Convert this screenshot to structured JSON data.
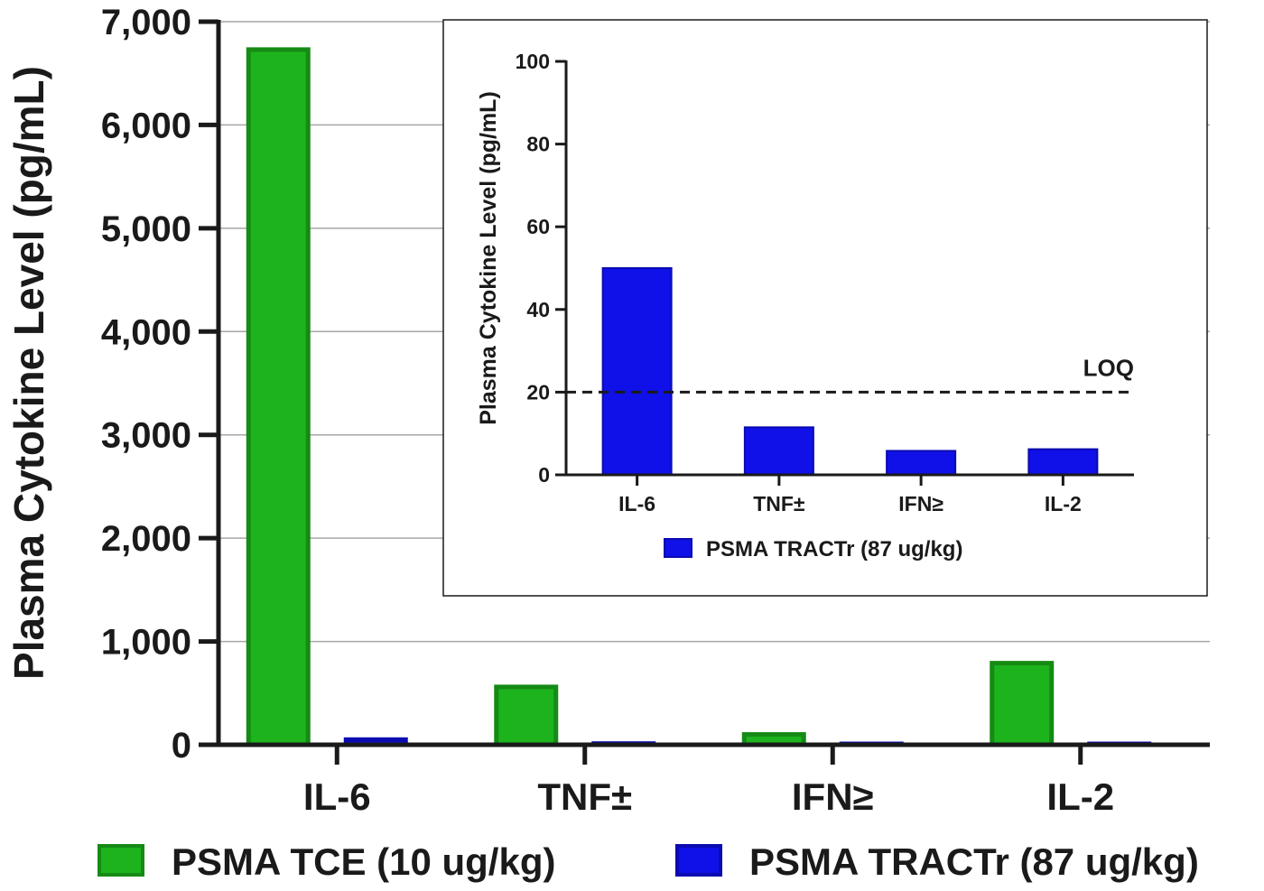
{
  "colors": {
    "tce_fill": "#1db31d",
    "tce_stroke": "#158a15",
    "tractr_fill": "#1010e8",
    "tractr_stroke": "#0b0bb0",
    "grid": "#a6a6a6",
    "axis": "#1a1a1a"
  },
  "chart_data": [
    {
      "type": "bar",
      "title": "",
      "xlabel": "",
      "ylabel": "Plasma Cytokine Level (pg/mL)",
      "categories": [
        "IL-6",
        "TNF±",
        "IFN≥",
        "IL-2"
      ],
      "ylim": [
        0,
        7000
      ],
      "yticks": [
        0,
        1000,
        2000,
        3000,
        4000,
        5000,
        6000,
        7000
      ],
      "ytick_labels": [
        "0",
        "1,000",
        "2,000",
        "3,000",
        "4,000",
        "5,000",
        "6,000",
        "7,000"
      ],
      "grid": "horizontal",
      "legend_position": "bottom",
      "series": [
        {
          "name": "PSMA TCE (10 ug/kg)",
          "values": [
            6730,
            560,
            100,
            790
          ]
        },
        {
          "name": "PSMA TRACTr (87 ug/kg)",
          "values": [
            50,
            11.5,
            5.8,
            6.2
          ]
        }
      ]
    },
    {
      "type": "bar",
      "title": "",
      "xlabel": "",
      "ylabel": "Plasma Cytokine Level (pg/mL)",
      "categories": [
        "IL-6",
        "TNF±",
        "IFN≥",
        "IL-2"
      ],
      "ylim": [
        0,
        100
      ],
      "yticks": [
        0,
        20,
        40,
        60,
        80,
        100
      ],
      "ytick_labels": [
        "0",
        "20",
        "40",
        "60",
        "80",
        "100"
      ],
      "grid": "none",
      "legend_position": "bottom",
      "series": [
        {
          "name": "PSMA TRACTr (87 ug/kg)",
          "values": [
            50,
            11.5,
            5.8,
            6.2
          ]
        }
      ],
      "reference_line": {
        "label": "LOQ",
        "value": 20
      }
    }
  ]
}
